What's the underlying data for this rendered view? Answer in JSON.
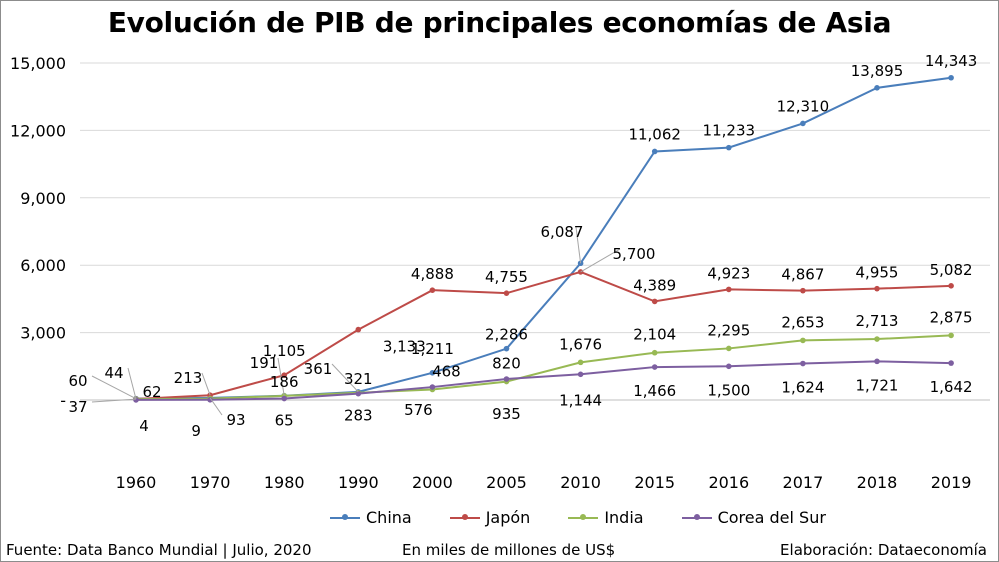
{
  "chart_data": {
    "type": "line",
    "title": "Evolución de PIB de principales economías de Asia",
    "categories": [
      "1960",
      "1970",
      "1980",
      "1990",
      "2000",
      "2005",
      "2010",
      "2015",
      "2016",
      "2017",
      "2018",
      "2019"
    ],
    "ylim": [
      0,
      15000
    ],
    "yticks": [
      0,
      3000,
      6000,
      9000,
      12000,
      15000
    ],
    "ytick_labels": [
      "-",
      "3,000",
      "6,000",
      "9,000",
      "12,000",
      "15,000"
    ],
    "grid": true,
    "legend_position": "bottom",
    "series": [
      {
        "name": "China",
        "color": "#4a7ebb",
        "values": [
          60,
          93,
          191,
          361,
          1211,
          2286,
          6087,
          11062,
          11233,
          12310,
          13895,
          14343
        ],
        "labels": [
          "60",
          "93",
          "191",
          "361",
          "1,211",
          "2,286",
          "6,087",
          "11,062",
          "11,233",
          "12,310",
          "13,895",
          "14,343"
        ]
      },
      {
        "name": "Japón",
        "color": "#be4b48",
        "values": [
          44,
          213,
          1105,
          3133,
          4888,
          4755,
          5700,
          4389,
          4923,
          4867,
          4955,
          5082
        ],
        "labels": [
          "44",
          "213",
          "1,105",
          "3,133",
          "4,888",
          "4,755",
          "5,700",
          "4,389",
          "4,923",
          "4,867",
          "4,955",
          "5,082"
        ]
      },
      {
        "name": "India",
        "color": "#98b954",
        "values": [
          37,
          62,
          186,
          321,
          468,
          820,
          1676,
          2104,
          2295,
          2653,
          2713,
          2875
        ],
        "labels": [
          "37",
          "62",
          "186",
          "321",
          "468",
          "820",
          "1,676",
          "2,104",
          "2,295",
          "2,653",
          "2,713",
          "2,875"
        ]
      },
      {
        "name": "Corea del Sur",
        "color": "#7d5fa0",
        "values": [
          4,
          9,
          65,
          283,
          576,
          935,
          1144,
          1466,
          1500,
          1624,
          1721,
          1642
        ],
        "labels": [
          "4",
          "9",
          "65",
          "283",
          "576",
          "935",
          "1,144",
          "1,466",
          "1,500",
          "1,624",
          "1,721",
          "1,642"
        ]
      }
    ]
  },
  "footer": {
    "source": "Fuente: Data Banco Mundial | Julio, 2020",
    "units": "En miles de millones de US$",
    "credit": "Elaboración: Dataeconomía"
  }
}
